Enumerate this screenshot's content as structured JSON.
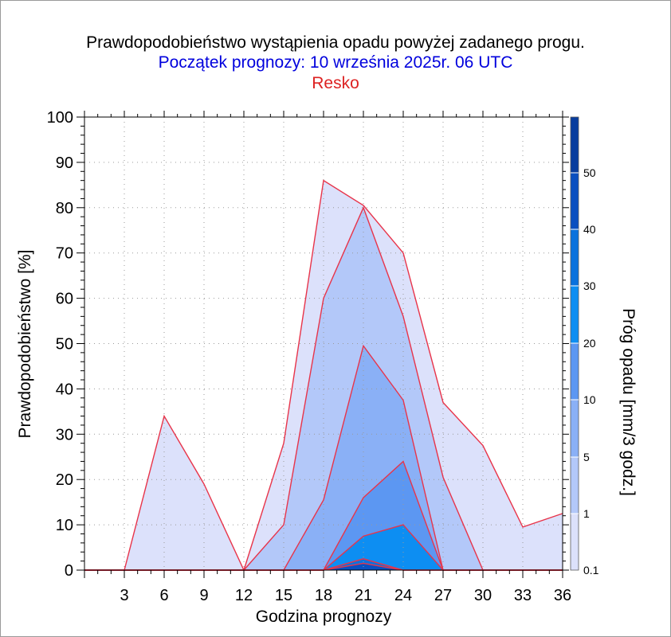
{
  "header": {
    "title": "Prawdopodobieństwo wystąpienia opadu powyżej zadanego progu.",
    "subtitle": "Początek prognozy: 10 września 2025r. 06 UTC",
    "location": "Resko"
  },
  "chart_data": {
    "type": "area",
    "xlabel": "Godzina prognozy",
    "ylabel": "Prawdopodobieństwo [%]",
    "colorbar_label": "Próg opadu [mm/3 godz.]",
    "x": [
      0,
      3,
      6,
      9,
      12,
      15,
      18,
      21,
      24,
      27,
      30,
      33,
      36
    ],
    "x_tick_labels": [
      "3",
      "6",
      "9",
      "12",
      "15",
      "18",
      "21",
      "24",
      "27",
      "30",
      "33",
      "36"
    ],
    "xlim": [
      0,
      36
    ],
    "ylim": [
      0,
      100
    ],
    "y_tick_labels": [
      "0",
      "10",
      "20",
      "30",
      "40",
      "50",
      "60",
      "70",
      "80",
      "90",
      "100"
    ],
    "grid": true,
    "line_color": "#e8344a",
    "series": [
      {
        "name": "0.1",
        "color": "#dce1fb",
        "values": [
          0,
          0,
          34,
          19,
          0,
          28,
          86,
          80.5,
          70,
          37,
          27.5,
          9.5,
          12.5
        ]
      },
      {
        "name": "1",
        "color": "#b3c8f9",
        "values": [
          0,
          0,
          0,
          0,
          0,
          10,
          60,
          80,
          56,
          20.5,
          0,
          0,
          0
        ]
      },
      {
        "name": "5",
        "color": "#8ab0f6",
        "values": [
          0,
          0,
          0,
          0,
          0,
          0,
          15.5,
          49.5,
          37.5,
          0,
          0,
          0,
          0
        ]
      },
      {
        "name": "10",
        "color": "#5c97f2",
        "values": [
          0,
          0,
          0,
          0,
          0,
          0,
          0,
          16,
          24,
          0,
          0,
          0,
          0
        ]
      },
      {
        "name": "20",
        "color": "#0d8ef2",
        "values": [
          0,
          0,
          0,
          0,
          0,
          0,
          0,
          7.5,
          10,
          0,
          0,
          0,
          0
        ]
      },
      {
        "name": "30",
        "color": "#0a72dd",
        "values": [
          0,
          0,
          0,
          0,
          0,
          0,
          0,
          2.5,
          0,
          0,
          0,
          0,
          0
        ]
      },
      {
        "name": "40",
        "color": "#0a4fc0",
        "values": [
          0,
          0,
          0,
          0,
          0,
          0,
          0,
          1.5,
          0,
          0,
          0,
          0,
          0
        ]
      }
    ],
    "colorbar": {
      "labels": [
        "0.1",
        "1",
        "5",
        "10",
        "20",
        "30",
        "40",
        "50"
      ],
      "colors": [
        "#dce1fb",
        "#b3c8f9",
        "#8ab0f6",
        "#5c97f2",
        "#0d8ef2",
        "#0a72dd",
        "#0a4fc0",
        "#083d9e"
      ]
    }
  }
}
